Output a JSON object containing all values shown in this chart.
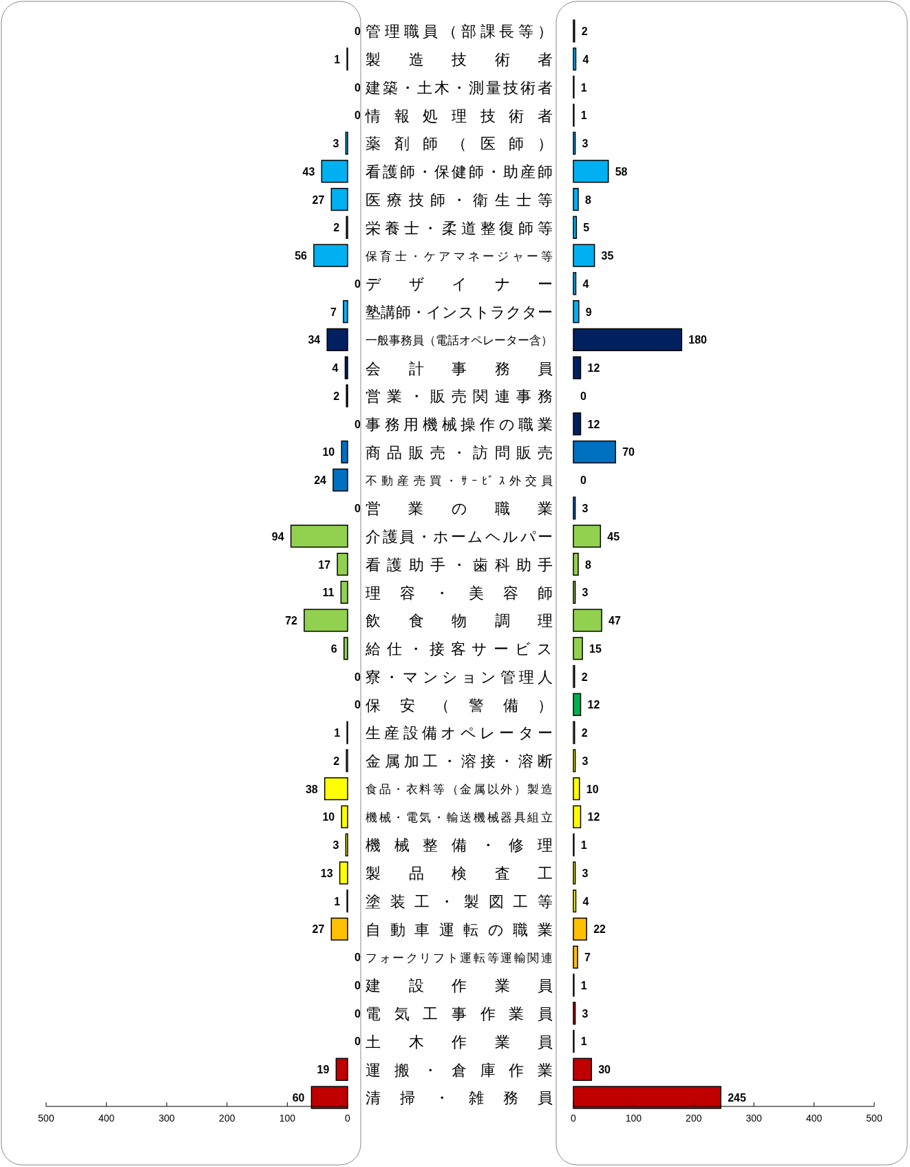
{
  "chart_data": [
    {
      "type": "bar",
      "orientation": "horizontal",
      "data_labels": true,
      "grid": false,
      "xlim": [
        500,
        0
      ],
      "xticks": [
        500,
        400,
        300,
        200,
        100,
        0
      ],
      "categories": [
        "管理職員（部課長等）",
        "製造技術者",
        "建築・土木・測量技術者",
        "情報処理技術者",
        "薬剤師（医師）",
        "看護師・保健師・助産師",
        "医療技師・衛生士等",
        "栄養士・柔道整復師等",
        "保育士・ケアマネージャー等",
        "デザイナー",
        "塾講師・インストラクター",
        "一般事務員（電話オペレーター含）",
        "会計事務員",
        "営業・販売関連事務",
        "事務用機械操作の職業",
        "商品販売・訪問販売",
        "不動産売買・ｻｰﾋﾞｽ外交員",
        "営業の職業",
        "介護員・ホームヘルパー",
        "看護助手・歯科助手",
        "理容・美容師",
        "飲食物調理",
        "給仕・接客サービス",
        "寮・マンション管理人",
        "保安（警備）",
        "生産設備オペレーター",
        "金属加工・溶接・溶断",
        "食品・衣料等（金属以外）製造",
        "機械・電気・輸送機械器具組立",
        "機械整備・修理",
        "製品検査工",
        "塗装工・製図工等",
        "自動車運転の職業",
        "フォークリフト運転等運輸関連",
        "建設作業員",
        "電気工事作業員",
        "土木作業員",
        "運搬・倉庫作業",
        "清掃・雑務員"
      ],
      "values": [
        0,
        1,
        0,
        0,
        3,
        43,
        27,
        2,
        56,
        0,
        7,
        34,
        4,
        2,
        0,
        10,
        24,
        0,
        94,
        17,
        11,
        72,
        6,
        0,
        0,
        1,
        2,
        38,
        10,
        3,
        13,
        1,
        27,
        0,
        0,
        0,
        0,
        19,
        60
      ],
      "colors": [
        "#00b0f0",
        "#00b0f0",
        "#00b0f0",
        "#00b0f0",
        "#00b0f0",
        "#00b0f0",
        "#00b0f0",
        "#00b0f0",
        "#00b0f0",
        "#00b0f0",
        "#00b0f0",
        "#002060",
        "#002060",
        "#002060",
        "#002060",
        "#0070c0",
        "#0070c0",
        "#0070c0",
        "#92d050",
        "#92d050",
        "#92d050",
        "#92d050",
        "#92d050",
        "#92d050",
        "#00b050",
        "#ffff00",
        "#ffff00",
        "#ffff00",
        "#ffff00",
        "#ffff00",
        "#ffff00",
        "#ffff00",
        "#ffc000",
        "#ffc000",
        "#c00000",
        "#c00000",
        "#c00000",
        "#c00000",
        "#c00000"
      ]
    },
    {
      "type": "bar",
      "orientation": "horizontal",
      "data_labels": true,
      "grid": false,
      "tick_labels": "x",
      "xlim": [
        0,
        500
      ],
      "xticks": [
        0,
        100,
        200,
        300,
        400,
        500
      ],
      "categories": [
        null,
        null,
        null,
        null,
        null,
        null,
        null,
        null,
        null,
        null,
        null,
        null,
        null,
        null,
        null,
        null,
        null,
        null,
        null,
        null,
        null,
        null,
        null,
        null,
        null,
        null,
        null,
        null,
        null,
        null,
        null,
        null,
        null,
        null,
        null,
        null,
        null,
        null,
        null
      ],
      "values": [
        2,
        4,
        1,
        1,
        3,
        58,
        8,
        5,
        35,
        4,
        9,
        180,
        12,
        0,
        12,
        70,
        0,
        3,
        45,
        8,
        3,
        47,
        15,
        2,
        12,
        2,
        3,
        10,
        12,
        1,
        3,
        4,
        22,
        7,
        1,
        3,
        1,
        30,
        245
      ],
      "colors": [
        "#00b0f0",
        "#00b0f0",
        "#00b0f0",
        "#00b0f0",
        "#00b0f0",
        "#00b0f0",
        "#00b0f0",
        "#00b0f0",
        "#00b0f0",
        "#00b0f0",
        "#00b0f0",
        "#002060",
        "#002060",
        "#002060",
        "#002060",
        "#0070c0",
        "#0070c0",
        "#0070c0",
        "#92d050",
        "#92d050",
        "#92d050",
        "#92d050",
        "#92d050",
        "#92d050",
        "#00b050",
        "#ffff00",
        "#ffff00",
        "#ffff00",
        "#ffff00",
        "#ffff00",
        "#ffff00",
        "#ffff00",
        "#ffc000",
        "#ffc000",
        "#c00000",
        "#c00000",
        "#c00000",
        "#c00000",
        "#c00000"
      ]
    }
  ]
}
